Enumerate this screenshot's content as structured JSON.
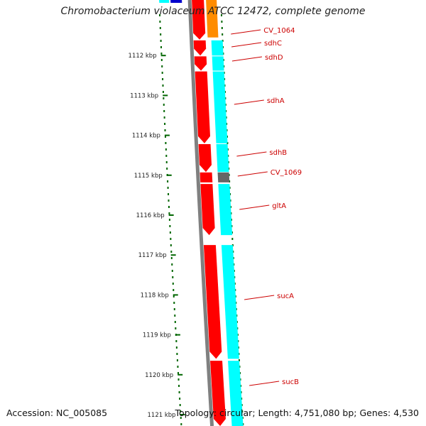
{
  "title": "Chromobacterium violaceum ATCC 12472, complete genome",
  "footer": {
    "accession_label": "Accession:",
    "accession": "NC_005085",
    "topology_label": "Topology:",
    "topology": "circular",
    "length_label": "Length:",
    "length": "4,751,080 bp",
    "genes_label": "Genes:",
    "genes": "4,530"
  },
  "scale": {
    "unit": "kbp",
    "ticks": [
      "1112 kbp",
      "1113 kbp",
      "1114 kbp",
      "1115 kbp",
      "1116 kbp",
      "1117 kbp",
      "1118 kbp",
      "1119 kbp",
      "1120 kbp",
      "1121 kbp"
    ]
  },
  "genes": [
    {
      "name": "CV_1064",
      "start_kbp": 1110.6,
      "end_kbp": 1111.6
    },
    {
      "name": "sdhC",
      "start_kbp": 1111.62,
      "end_kbp": 1112.0
    },
    {
      "name": "sdhD",
      "start_kbp": 1112.02,
      "end_kbp": 1112.38
    },
    {
      "name": "sdhA",
      "start_kbp": 1112.4,
      "end_kbp": 1114.2
    },
    {
      "name": "sdhB",
      "start_kbp": 1114.22,
      "end_kbp": 1114.92
    },
    {
      "name": "CV_1069",
      "start_kbp": 1114.93,
      "end_kbp": 1115.18
    },
    {
      "name": "gltA",
      "start_kbp": 1115.22,
      "end_kbp": 1116.5
    },
    {
      "name": "sucA",
      "start_kbp": 1116.75,
      "end_kbp": 1119.6
    },
    {
      "name": "sucB",
      "start_kbp": 1119.65,
      "end_kbp": 1121.3
    }
  ],
  "colors": {
    "background": "#ffffff",
    "backbone": "#808080",
    "forward_genes": "#ff0000",
    "cds_track": "#00ffff",
    "orange_gene": "#ff8c00",
    "hypothetical_gene": "#666666",
    "blue_gene": "#0000cc",
    "label_text": "#cc0000",
    "tick_color": "#006600"
  }
}
